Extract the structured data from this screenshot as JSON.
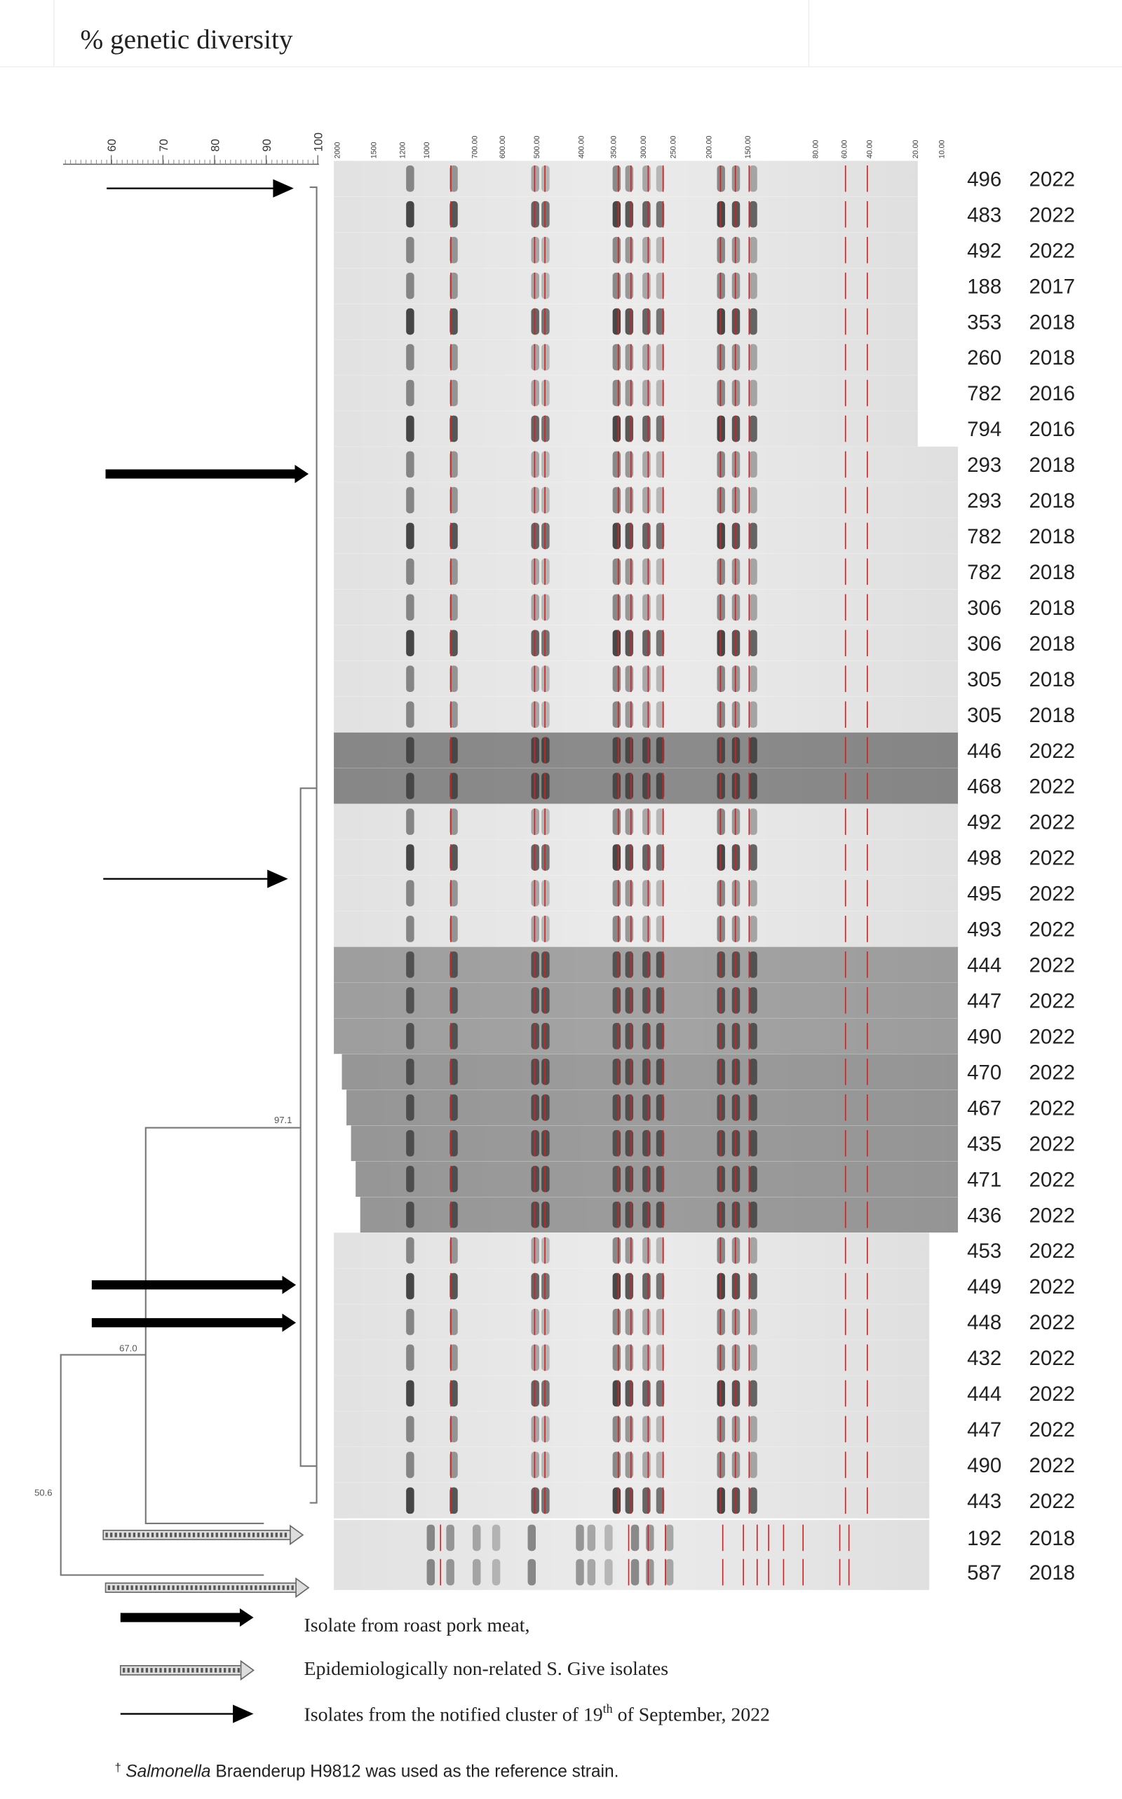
{
  "header": {
    "title": "% genetic diversity"
  },
  "scale": {
    "ticks": [
      60,
      70,
      80,
      90,
      100
    ]
  },
  "markers": [
    "2000",
    "1500",
    "1200",
    "1000",
    "700.00",
    "600.00",
    "500.00",
    "400.00",
    "350.00",
    "300.00",
    "250.00",
    "200.00",
    "150.00",
    "80.00",
    "60.00",
    "40.00",
    "20.00",
    "10.00"
  ],
  "nodes": [
    {
      "label": "97.1"
    },
    {
      "label": "67.0"
    },
    {
      "label": "50.6"
    }
  ],
  "rows": [
    [
      "496",
      "2022"
    ],
    [
      "483",
      "2022"
    ],
    [
      "492",
      "2022"
    ],
    [
      "188",
      "2017"
    ],
    [
      "353",
      "2018"
    ],
    [
      "260",
      "2018"
    ],
    [
      "782",
      "2016"
    ],
    [
      "794",
      "2016"
    ],
    [
      "293",
      "2018"
    ],
    [
      "293",
      "2018"
    ],
    [
      "782",
      "2018"
    ],
    [
      "782",
      "2018"
    ],
    [
      "306",
      "2018"
    ],
    [
      "306",
      "2018"
    ],
    [
      "305",
      "2018"
    ],
    [
      "305",
      "2018"
    ],
    [
      "446",
      "2022"
    ],
    [
      "468",
      "2022"
    ],
    [
      "492",
      "2022"
    ],
    [
      "498",
      "2022"
    ],
    [
      "495",
      "2022"
    ],
    [
      "493",
      "2022"
    ],
    [
      "444",
      "2022"
    ],
    [
      "447",
      "2022"
    ],
    [
      "490",
      "2022"
    ],
    [
      "470",
      "2022"
    ],
    [
      "467",
      "2022"
    ],
    [
      "435",
      "2022"
    ],
    [
      "471",
      "2022"
    ],
    [
      "436",
      "2022"
    ],
    [
      "453",
      "2022"
    ],
    [
      "449",
      "2022"
    ],
    [
      "448",
      "2022"
    ],
    [
      "432",
      "2022"
    ],
    [
      "444",
      "2022"
    ],
    [
      "447",
      "2022"
    ],
    [
      "490",
      "2022"
    ],
    [
      "443",
      "2022"
    ],
    [
      "192",
      "2018"
    ],
    [
      "587",
      "2018"
    ]
  ],
  "legend": [
    {
      "text": "Isolate  from roast pork meat,"
    },
    {
      "text": "Epidemiologically  non-related S. Give isolates"
    },
    {
      "text": [
        "Isolates from the notified cluster of 19",
        "th",
        " of September, 2022"
      ]
    }
  ],
  "footnote": [
    "†",
    "Salmonella",
    " Braenderup H9812 was used as the reference strain."
  ]
}
